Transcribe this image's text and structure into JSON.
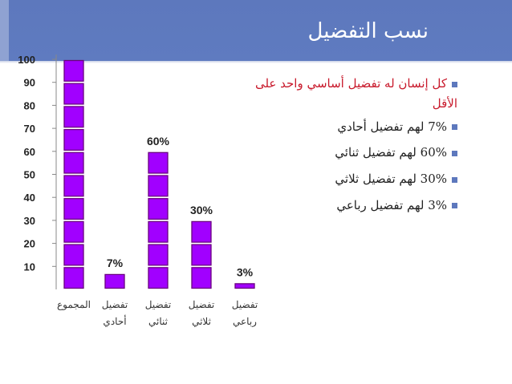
{
  "header": {
    "title": "نسب التفضيل"
  },
  "bullets": [
    "كل إنسان له تفضيل أساسي واحد على الأقل",
    "7% لهم تفضيل أحادي",
    "60% لهم تفضيل ثنائي",
    "30% لهم تفضيل ثلاثي",
    "3% لهم تفضيل رباعي"
  ],
  "colors": {
    "header": "#5d78bd",
    "bar_fill": "#a100ff",
    "bar_edge": "#6a0080",
    "bullet_first": "#c8192b"
  },
  "chart_data": {
    "type": "bar",
    "categories": [
      "المجموع",
      "تفضيل أحادي",
      "تفضيل ثنائي",
      "تفضيل ثلاثي",
      "تفضيل رباعي"
    ],
    "category_lines": [
      [
        "المجموع"
      ],
      [
        "تفضيل",
        "أحادي"
      ],
      [
        "تفضيل",
        "ثنائي"
      ],
      [
        "تفضيل",
        "ثلاثي"
      ],
      [
        "تفضيل",
        "رباعي"
      ]
    ],
    "values": [
      100,
      7,
      60,
      30,
      3
    ],
    "data_labels": [
      "",
      "7%",
      "60%",
      "30%",
      "3%"
    ],
    "yticks": [
      10,
      20,
      30,
      40,
      50,
      60,
      70,
      80,
      90,
      100
    ],
    "ylim": [
      0,
      100
    ],
    "segment_size": 10,
    "grid": false,
    "legend": "none"
  }
}
